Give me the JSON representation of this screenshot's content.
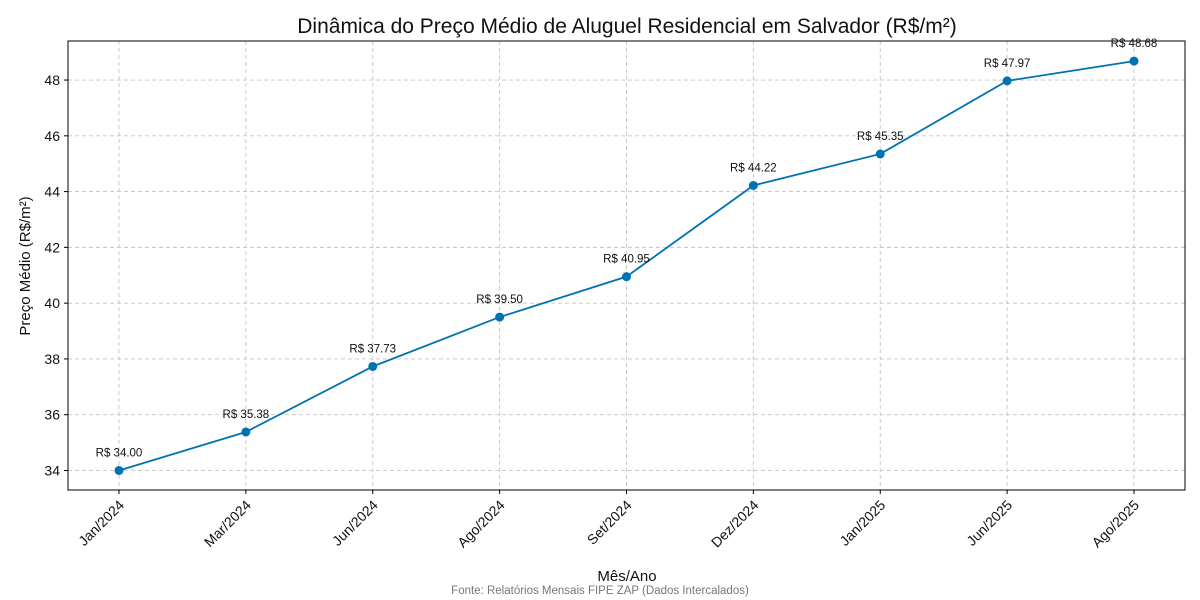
{
  "chart_data": {
    "type": "line",
    "title": "Dinâmica do Preço Médio de Aluguel Residencial em Salvador (R$/m²)",
    "xlabel": "Mês/Ano",
    "ylabel": "Preço Médio (R$/m²)",
    "categories": [
      "Jan/2024",
      "Mar/2024",
      "Jun/2024",
      "Ago/2024",
      "Set/2024",
      "Dez/2024",
      "Jan/2025",
      "Jun/2025",
      "Ago/2025"
    ],
    "values": [
      34.0,
      35.38,
      37.73,
      39.5,
      40.95,
      44.22,
      45.35,
      47.97,
      48.68
    ],
    "data_labels": [
      "R$ 34.00",
      "R$ 35.38",
      "R$ 37.73",
      "R$ 39.50",
      "R$ 40.95",
      "R$ 44.22",
      "R$ 45.35",
      "R$ 47.97",
      "R$ 48.68"
    ],
    "yticks": [
      "34",
      "36",
      "38",
      "40",
      "42",
      "44",
      "46",
      "48"
    ],
    "ylim": [
      33.3,
      49.4
    ],
    "grid": true,
    "line_color": "#0072b2",
    "source": "Fonte: Relatórios Mensais FIPE ZAP (Dados Intercalados)"
  }
}
